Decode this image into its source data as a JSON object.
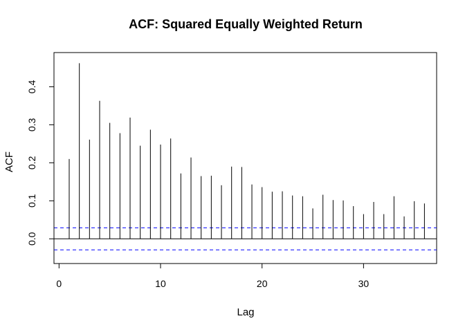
{
  "chart_data": {
    "type": "bar",
    "title": "ACF: Squared Equally Weighted Return",
    "xlabel": "Lag",
    "ylabel": "ACF",
    "xlim": [
      -0.5,
      37.2
    ],
    "ylim": [
      -0.065,
      0.49
    ],
    "x_ticks": [
      0,
      10,
      20,
      30
    ],
    "y_ticks": [
      0.0,
      0.1,
      0.2,
      0.3,
      0.4
    ],
    "x_tick_labels": [
      "0",
      "10",
      "20",
      "30"
    ],
    "y_tick_labels": [
      "0.0",
      "0.1",
      "0.2",
      "0.3",
      "0.4"
    ],
    "lags": [
      1,
      2,
      3,
      4,
      5,
      6,
      7,
      8,
      9,
      10,
      11,
      12,
      13,
      14,
      15,
      16,
      17,
      18,
      19,
      20,
      21,
      22,
      23,
      24,
      25,
      26,
      27,
      28,
      29,
      30,
      31,
      32,
      33,
      34,
      35,
      36
    ],
    "acf": [
      0.21,
      0.462,
      0.261,
      0.363,
      0.305,
      0.278,
      0.319,
      0.245,
      0.287,
      0.248,
      0.264,
      0.172,
      0.214,
      0.165,
      0.166,
      0.141,
      0.19,
      0.189,
      0.143,
      0.136,
      0.124,
      0.125,
      0.114,
      0.112,
      0.08,
      0.116,
      0.102,
      0.101,
      0.086,
      0.065,
      0.097,
      0.065,
      0.112,
      0.059,
      0.099,
      0.093
    ],
    "confidence_bound": 0.029,
    "grid": false,
    "colors": {
      "bars": "#000000",
      "zero_line": "#000000",
      "confidence_lines": "#0000ff",
      "frame": "#000000"
    }
  }
}
